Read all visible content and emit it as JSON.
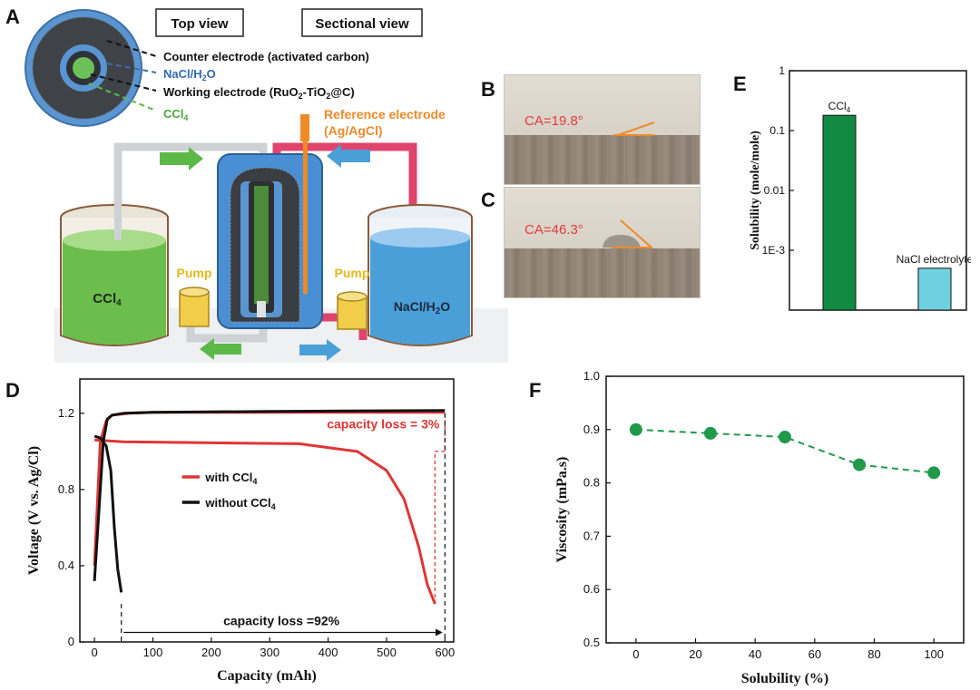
{
  "panels": {
    "a": "A",
    "b": "B",
    "c": "C",
    "d": "D",
    "e": "E",
    "f": "F"
  },
  "panel_a": {
    "view_labels": [
      "Top view",
      "Sectional view"
    ],
    "legend": {
      "counter": "Counter electrode (activated carbon)",
      "nacl_h2o": "NaCl/H",
      "nacl_sub": "2",
      "nacl_end": "O",
      "working_a": "Working electrode (RuO",
      "working_sub1": "2",
      "working_b": "-TiO",
      "working_sub2": "2",
      "working_c": "@C)",
      "ccl4": "CCl",
      "ccl4_sub": "4"
    },
    "reference_line1": "Reference electrode",
    "reference_line2": "(Ag/AgCl)",
    "pump_left": "Pump",
    "pump_right": "Pump",
    "tank_left": "CCl",
    "tank_left_sub": "4",
    "tank_right": "NaCl/H",
    "tank_right_sub": "2",
    "tank_right_end": "O",
    "colors": {
      "green": "#5cb847",
      "blue": "#4a9fd8",
      "red": "#e0436b",
      "orange": "#ee8a28",
      "gray": "#cfd2d4"
    }
  },
  "panel_b": {
    "ca_label": "CA=19.8°"
  },
  "panel_c": {
    "ca_label": "CA=46.3°"
  },
  "chart_data": [
    {
      "id": "D",
      "type": "line",
      "xlabel": "Capacity (mAh)",
      "ylabel": "Voltage (V vs. Ag/Cl)",
      "xlim": [
        -25,
        615
      ],
      "ylim": [
        0,
        1.38
      ],
      "xticks": [
        0,
        100,
        200,
        300,
        400,
        500,
        600
      ],
      "yticks": [
        0,
        0.4,
        0.8,
        1.2
      ],
      "ytick_labels": [
        "0",
        "0.4",
        "0.8",
        "1.2"
      ],
      "series": [
        {
          "name": "with CCl",
          "name_sub": "4",
          "color": "#e03535",
          "charge": {
            "x": [
              0,
              10,
              20,
              30,
              60,
              100,
              200,
              400,
              600
            ],
            "y": [
              0.4,
              1.05,
              1.16,
              1.19,
              1.2,
              1.205,
              1.205,
              1.205,
              1.205
            ]
          },
          "discharge": {
            "x": [
              0,
              50,
              200,
              350,
              450,
              500,
              530,
              555,
              570,
              583
            ],
            "y": [
              1.06,
              1.05,
              1.045,
              1.04,
              1.0,
              0.9,
              0.75,
              0.5,
              0.3,
              0.2
            ]
          }
        },
        {
          "name": "without CCl",
          "name_sub": "4",
          "color": "#111111",
          "charge": {
            "x": [
              0,
              8,
              15,
              22,
              30,
              50,
              100,
              300,
              600
            ],
            "y": [
              0.32,
              0.7,
              1.05,
              1.17,
              1.19,
              1.2,
              1.205,
              1.21,
              1.215
            ]
          },
          "discharge": {
            "x": [
              0,
              10,
              20,
              28,
              34,
              40,
              46
            ],
            "y": [
              1.08,
              1.07,
              1.03,
              0.9,
              0.6,
              0.38,
              0.26
            ]
          }
        }
      ],
      "annotations": {
        "loss_3": "capacity loss = 3%",
        "loss_92": "capacity loss =92%"
      }
    },
    {
      "id": "E",
      "type": "bar",
      "scale": "log",
      "ylabel": "Solubility (mole/mole)",
      "ylim": [
        0.0001,
        1
      ],
      "yticks": [
        0.001,
        0.01,
        0.1,
        1
      ],
      "ytick_labels": [
        "1E-3",
        "0.01",
        "0.1",
        "1"
      ],
      "categories": [
        {
          "label": "CCl",
          "sub": "4",
          "value": 0.18,
          "color": "#138a42"
        },
        {
          "label": "NaCl electrolyte",
          "sub": "",
          "value": 0.0005,
          "color": "#6fd0e0"
        }
      ]
    },
    {
      "id": "F",
      "type": "scatter",
      "xlabel": "Solubility (%)",
      "ylabel": "Viscosity (mPa.s)",
      "xlim": [
        -10,
        110
      ],
      "ylim": [
        0.5,
        1.0
      ],
      "xticks": [
        0,
        20,
        40,
        60,
        80,
        100
      ],
      "yticks": [
        0.5,
        0.6,
        0.7,
        0.8,
        0.9,
        1.0
      ],
      "ytick_labels": [
        "0.5",
        "0.6",
        "0.7",
        "0.8",
        "0.9",
        "1.0"
      ],
      "x": [
        0,
        25,
        50,
        75,
        100
      ],
      "y": [
        0.9,
        0.893,
        0.886,
        0.834,
        0.819
      ],
      "color": "#1f9a4a"
    }
  ]
}
